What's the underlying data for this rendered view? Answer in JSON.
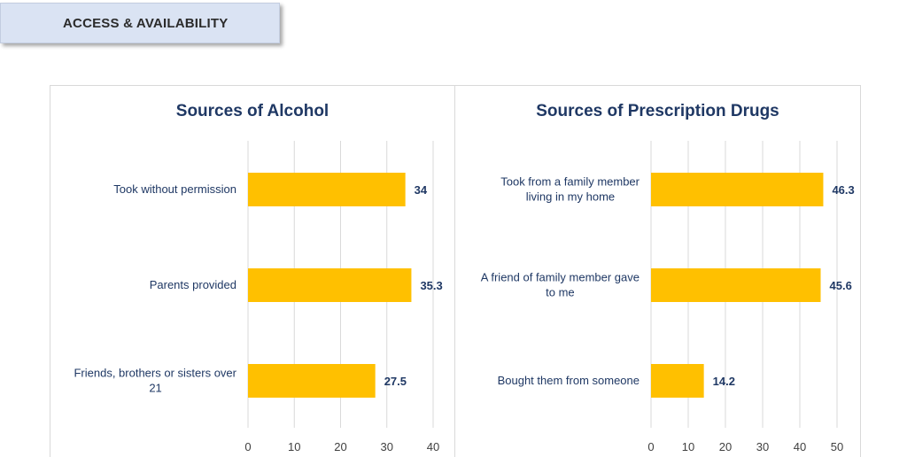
{
  "header": {
    "title": "ACCESS & AVAILABILITY"
  },
  "colors": {
    "bar": "#ffc000",
    "grid": "#d9d9d9",
    "text": "#1f3864"
  },
  "chart_data": [
    {
      "type": "bar",
      "orientation": "horizontal",
      "title": "Sources of Alcohol",
      "categories": [
        [
          "Took without permission"
        ],
        [
          "Parents provided"
        ],
        [
          "Friends, brothers or sisters over",
          "21"
        ]
      ],
      "values": [
        34,
        35.3,
        27.5
      ],
      "value_labels": [
        "34",
        "35.3",
        "27.5"
      ],
      "xlim": [
        0,
        40
      ],
      "xticks": [
        0,
        10,
        20,
        30,
        40
      ],
      "grid": true
    },
    {
      "type": "bar",
      "orientation": "horizontal",
      "title": "Sources of Prescription Drugs",
      "categories": [
        [
          "Took from a family member",
          "living in my home"
        ],
        [
          "A friend of family member gave",
          "to me"
        ],
        [
          "Bought them from someone"
        ]
      ],
      "values": [
        46.3,
        45.6,
        14.2
      ],
      "value_labels": [
        "46.3",
        "45.6",
        "14.2"
      ],
      "xlim": [
        0,
        50
      ],
      "xticks": [
        0,
        10,
        20,
        30,
        40,
        50
      ],
      "grid": true
    }
  ]
}
